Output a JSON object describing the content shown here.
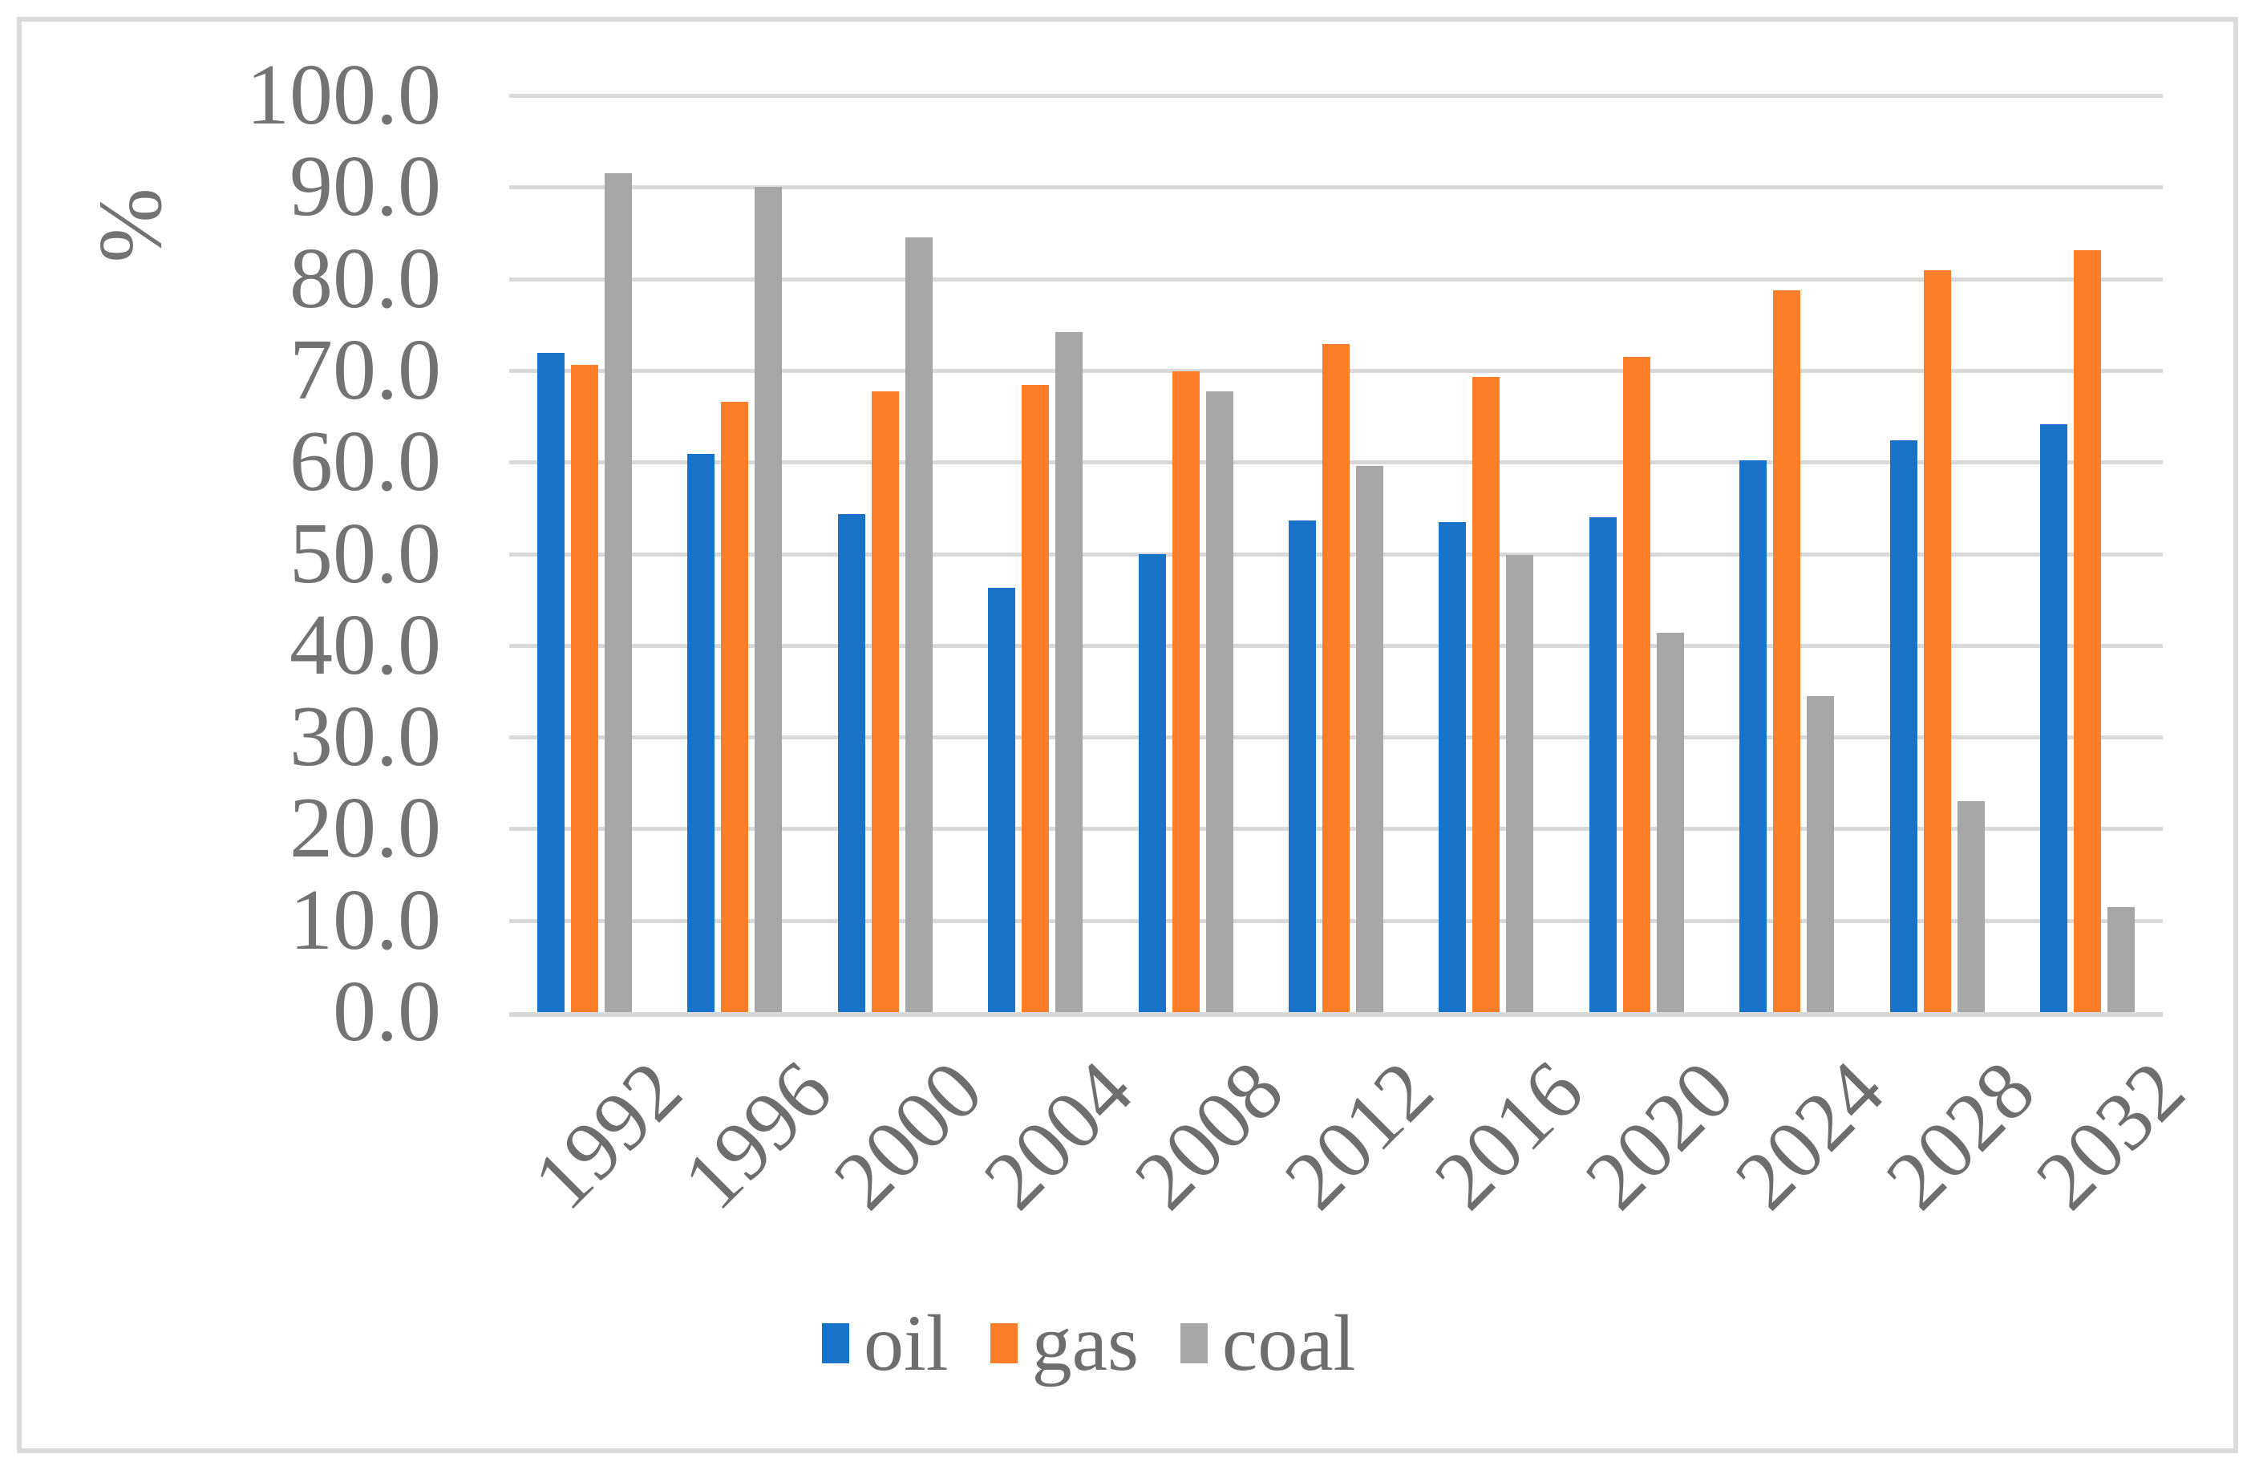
{
  "figure": {
    "y_axis_title": "%",
    "y_tick_labels": [
      "100.0",
      "90.0",
      "80.0",
      "70.0",
      "60.0",
      "50.0",
      "40.0",
      "30.0",
      "20.0",
      "10.0",
      "0.0"
    ]
  },
  "legend": {
    "items": [
      {
        "label": "oil",
        "color": "#1973C8"
      },
      {
        "label": "gas",
        "color": "#FD7E28"
      },
      {
        "label": "coal",
        "color": "#A7A7A7"
      }
    ]
  },
  "chart_data": {
    "type": "bar",
    "title": "",
    "categories": [
      "1992",
      "1996",
      "2000",
      "2004",
      "2008",
      "2012",
      "2016",
      "2020",
      "2024",
      "2028",
      "2032"
    ],
    "series": [
      {
        "name": "oil",
        "color": "#1973C8",
        "values": [
          71.9,
          60.9,
          54.3,
          46.3,
          50.0,
          53.6,
          53.5,
          54.0,
          60.2,
          62.4,
          64.1
        ]
      },
      {
        "name": "gas",
        "color": "#FD7E28",
        "values": [
          70.6,
          66.6,
          67.7,
          68.4,
          69.9,
          72.9,
          69.3,
          71.5,
          78.7,
          80.9,
          83.1
        ]
      },
      {
        "name": "coal",
        "color": "#A7A7A7",
        "values": [
          91.5,
          90.0,
          84.5,
          74.2,
          67.7,
          59.6,
          49.9,
          41.4,
          34.5,
          23.0,
          11.5
        ]
      }
    ],
    "xlabel": "",
    "ylabel": "%",
    "ylim": [
      0,
      100
    ],
    "ytick_step": 10,
    "grid": true,
    "gridline_color": "#D9D9D9",
    "legend_position": "bottom"
  }
}
